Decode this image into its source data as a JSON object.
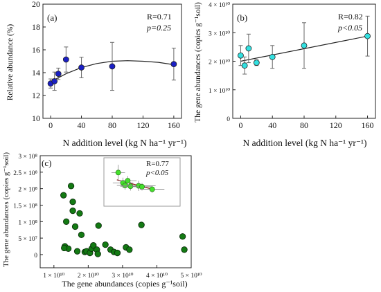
{
  "chart_data": [
    {
      "panel": "(a)",
      "type": "scatter",
      "title": "",
      "xlabel": "N addition level (kg N ha⁻¹ yr⁻¹)",
      "ylabel": "Relative abundance (%)",
      "xlim": [
        -10,
        170
      ],
      "ylim": [
        10,
        20
      ],
      "xticks": [
        "0",
        "40",
        "80",
        "120",
        "160"
      ],
      "yticks": [
        "10",
        "12",
        "14",
        "16",
        "18",
        "20"
      ],
      "stat_r": "R=0.71",
      "stat_p": "p=0.25",
      "point_color": "#1a1fc4",
      "series": [
        {
          "x": [
            0,
            5,
            10,
            20,
            40,
            80,
            160
          ],
          "y": [
            13.05,
            13.25,
            13.9,
            15.15,
            14.45,
            14.55,
            14.75
          ],
          "err": [
            0.4,
            0.8,
            0.5,
            1.1,
            0.9,
            2.1,
            1.4
          ]
        }
      ],
      "fit": {
        "type": "quadratic",
        "x": [
          0,
          20,
          40,
          60,
          80,
          100,
          120,
          140,
          160
        ],
        "y": [
          13.2,
          13.9,
          14.45,
          14.8,
          15.0,
          15.05,
          15.0,
          14.9,
          14.7
        ]
      }
    },
    {
      "panel": "(b)",
      "type": "scatter",
      "title": "",
      "xlabel": "N addition level (kg N ha⁻¹ yr⁻¹)",
      "ylabel": "The gene abundances (copies g⁻¹soil)",
      "xlim": [
        -10,
        170
      ],
      "ylim": [
        0,
        4
      ],
      "y_unit": "×10¹⁰",
      "xticks": [
        "0",
        "40",
        "80",
        "120",
        "160"
      ],
      "yticks": [
        "0",
        "1 × 10¹⁰",
        "2 × 10¹⁰",
        "3 × 10¹⁰",
        "4 × 10¹⁰"
      ],
      "stat_r": "R=0.82",
      "stat_p": "p<0.05",
      "point_color": "#33e0e0",
      "series": [
        {
          "x": [
            0,
            5,
            10,
            20,
            40,
            80,
            160
          ],
          "y": [
            2.2,
            1.85,
            2.45,
            1.95,
            2.15,
            2.55,
            2.88
          ],
          "err": [
            0.35,
            0.3,
            0.5,
            0.1,
            0.4,
            0.8,
            0.7
          ]
        }
      ],
      "fit": {
        "type": "linear",
        "x": [
          0,
          160
        ],
        "y": [
          2.0,
          2.88
        ]
      }
    },
    {
      "panel": "(c)",
      "type": "scatter",
      "title": "",
      "xlabel": "The gene abundances (copies g⁻¹soil)",
      "ylabel": "The gene abundances (copies g⁻¹soil)",
      "xlim": [
        0.6,
        5.0
      ],
      "ylim": [
        -0.4,
        3.0
      ],
      "xticks": [
        "1 × 10¹⁰",
        "2 × 10¹⁰",
        "3 × 10¹⁰",
        "4 × 10¹⁰",
        "5 × 10¹⁰"
      ],
      "yticks": [
        "0",
        "5 × 10⁷",
        "1 × 10⁸",
        "1.5 × 10⁸",
        "2 × 10⁸",
        "2.5 × 10⁸",
        "3 × 10⁸"
      ],
      "point_color": "#137a13",
      "series": [
        {
          "x": [
            1.28,
            1.32,
            1.36,
            1.42,
            1.5,
            1.55,
            1.62,
            1.68,
            1.75,
            1.8,
            1.9,
            1.95,
            2.05,
            2.1,
            2.15,
            2.25,
            2.3,
            2.5,
            2.65,
            2.75,
            2.85,
            3.1,
            3.2,
            3.55,
            4.75,
            4.8,
            1.3,
            1.55,
            2.28
          ],
          "y": [
            1.8,
            0.25,
            1.0,
            0.18,
            2.08,
            1.33,
            0.85,
            0.1,
            1.25,
            0.6,
            0.08,
            0.1,
            0.05,
            0.18,
            0.28,
            0.15,
            0.88,
            0.3,
            0.15,
            0.08,
            0.05,
            0.22,
            0.15,
            0.9,
            0.55,
            0.15,
            0.2,
            1.6,
            0.02
          ]
        }
      ],
      "inset": {
        "stat_r": "R=0.77",
        "stat_p": "p<0.05",
        "point_color": "#44e02c",
        "fit_color": "#8b1a1a",
        "xlim": [
          0,
          10
        ],
        "ylim": [
          0,
          10
        ],
        "series": [
          {
            "x": [
              1.5,
              2.2,
              2.5,
              2.9,
              3.3,
              4.5,
              5.0,
              6.5
            ],
            "y": [
              7.2,
              4.8,
              4.2,
              5.3,
              4.0,
              4.1,
              3.9,
              3.3
            ],
            "xerr": [
              1.0,
              1.5,
              1.2,
              1.3,
              1.5,
              2.5,
              1.5,
              1.8
            ],
            "yerr": [
              1.8,
              1.2,
              1.0,
              1.1,
              1.0,
              1.2,
              0.9,
              0.8
            ]
          }
        ],
        "fit": {
          "type": "linear",
          "x": [
            1.3,
            6.8
          ],
          "y": [
            5.5,
            3.2
          ]
        }
      }
    }
  ]
}
